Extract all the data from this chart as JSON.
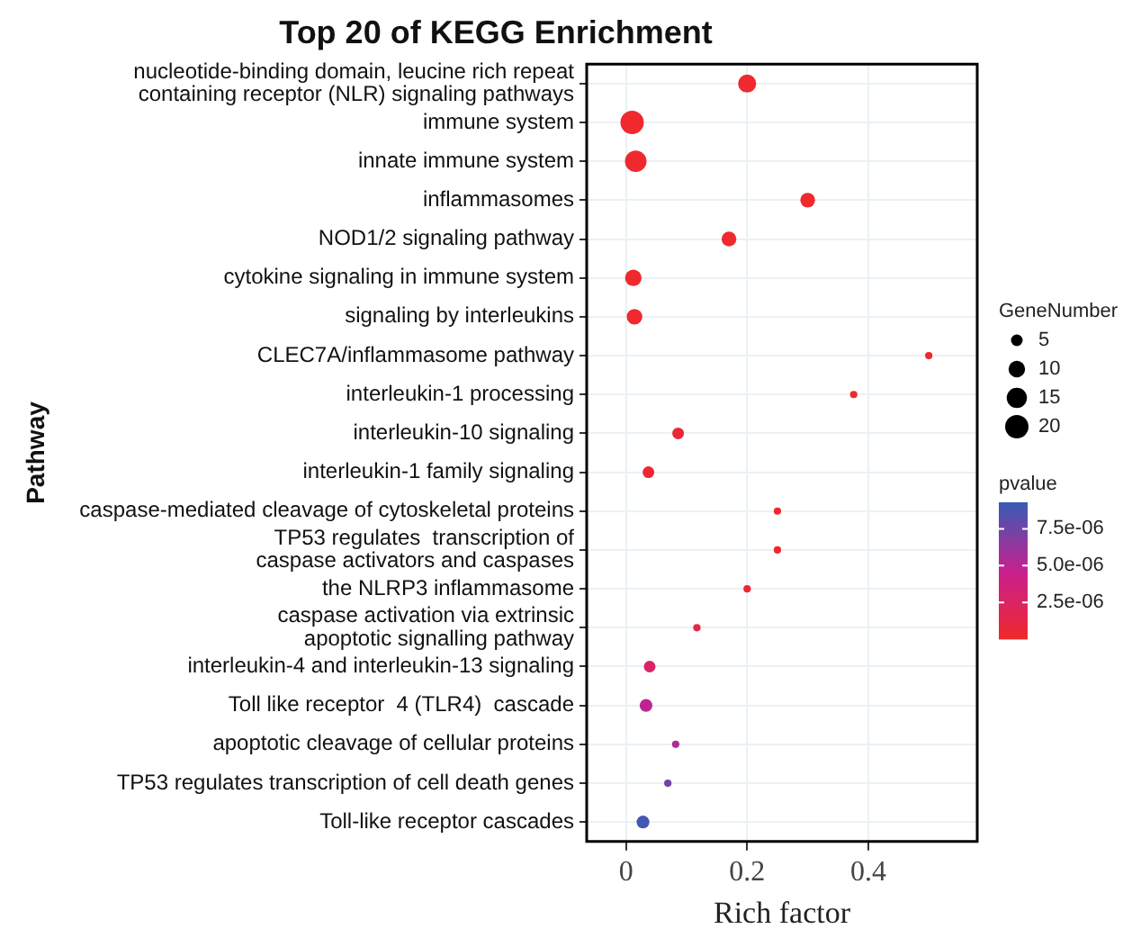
{
  "chart_data": {
    "type": "bubble",
    "orientation": "horizontal",
    "title": "Top 20 of KEGG Enrichment",
    "xlabel": "Rich factor",
    "ylabel": "Pathway",
    "legend_title": "GeneNumber",
    "clabel": "pvalue",
    "categories": [
      "nucleotide-binding domain, leucine rich repeat\ncontaining receptor (NLR) signaling pathways",
      "immune system",
      "innate immune system",
      "inflammasomes",
      "NOD1/2 signaling pathway",
      "cytokine signaling in immune system",
      "signaling by interleukins",
      "CLEC7A/inflammasome pathway",
      "interleukin-1 processing",
      "interleukin-10 signaling",
      "interleukin-1 family signaling",
      "caspase-mediated cleavage of cytoskeletal proteins",
      "TP53 regulates  transcription of\ncaspase activators and caspases",
      "the NLRP3 inflammasome",
      "caspase activation via extrinsic\napoptotic signalling pathway",
      "interleukin-4 and interleukin-13 signaling",
      "Toll like receptor  4 (TLR4)  cascade",
      "apoptotic cleavage of cellular proteins",
      "TP53 regulates transcription of cell death genes",
      "Toll-like receptor cascades"
    ],
    "values": [
      0.2,
      0.01,
      0.016,
      0.3,
      0.17,
      0.012,
      0.014,
      0.5,
      0.376,
      0.086,
      0.037,
      0.25,
      0.25,
      0.2,
      0.117,
      0.039,
      0.033,
      0.082,
      0.069,
      0.028
    ],
    "sizes": [
      12,
      20,
      17,
      8,
      8,
      10,
      9,
      2,
      2,
      5,
      5,
      2,
      2,
      2,
      2,
      5,
      6,
      2,
      2,
      6
    ],
    "cvalues": [
      1e-07,
      1e-07,
      1e-07,
      1e-07,
      1e-07,
      1e-07,
      1e-07,
      1e-07,
      2e-07,
      6e-07,
      4e-07,
      2e-07,
      2e-07,
      4e-07,
      1.2e-06,
      2.8e-06,
      5e-06,
      5.5e-06,
      7.5e-06,
      9e-06
    ],
    "size_legend": [
      5,
      10,
      15,
      20
    ],
    "clim": [
      0,
      9.3e-06
    ],
    "cticks": [
      {
        "value": 2.5e-06,
        "label": "2.5e-06"
      },
      {
        "value": 5e-06,
        "label": "5.0e-06"
      },
      {
        "value": 7.5e-06,
        "label": "7.5e-06"
      }
    ],
    "xlim": [
      -0.065,
      0.58
    ],
    "xticks": [
      0,
      0.2,
      0.4
    ],
    "grid": true
  }
}
